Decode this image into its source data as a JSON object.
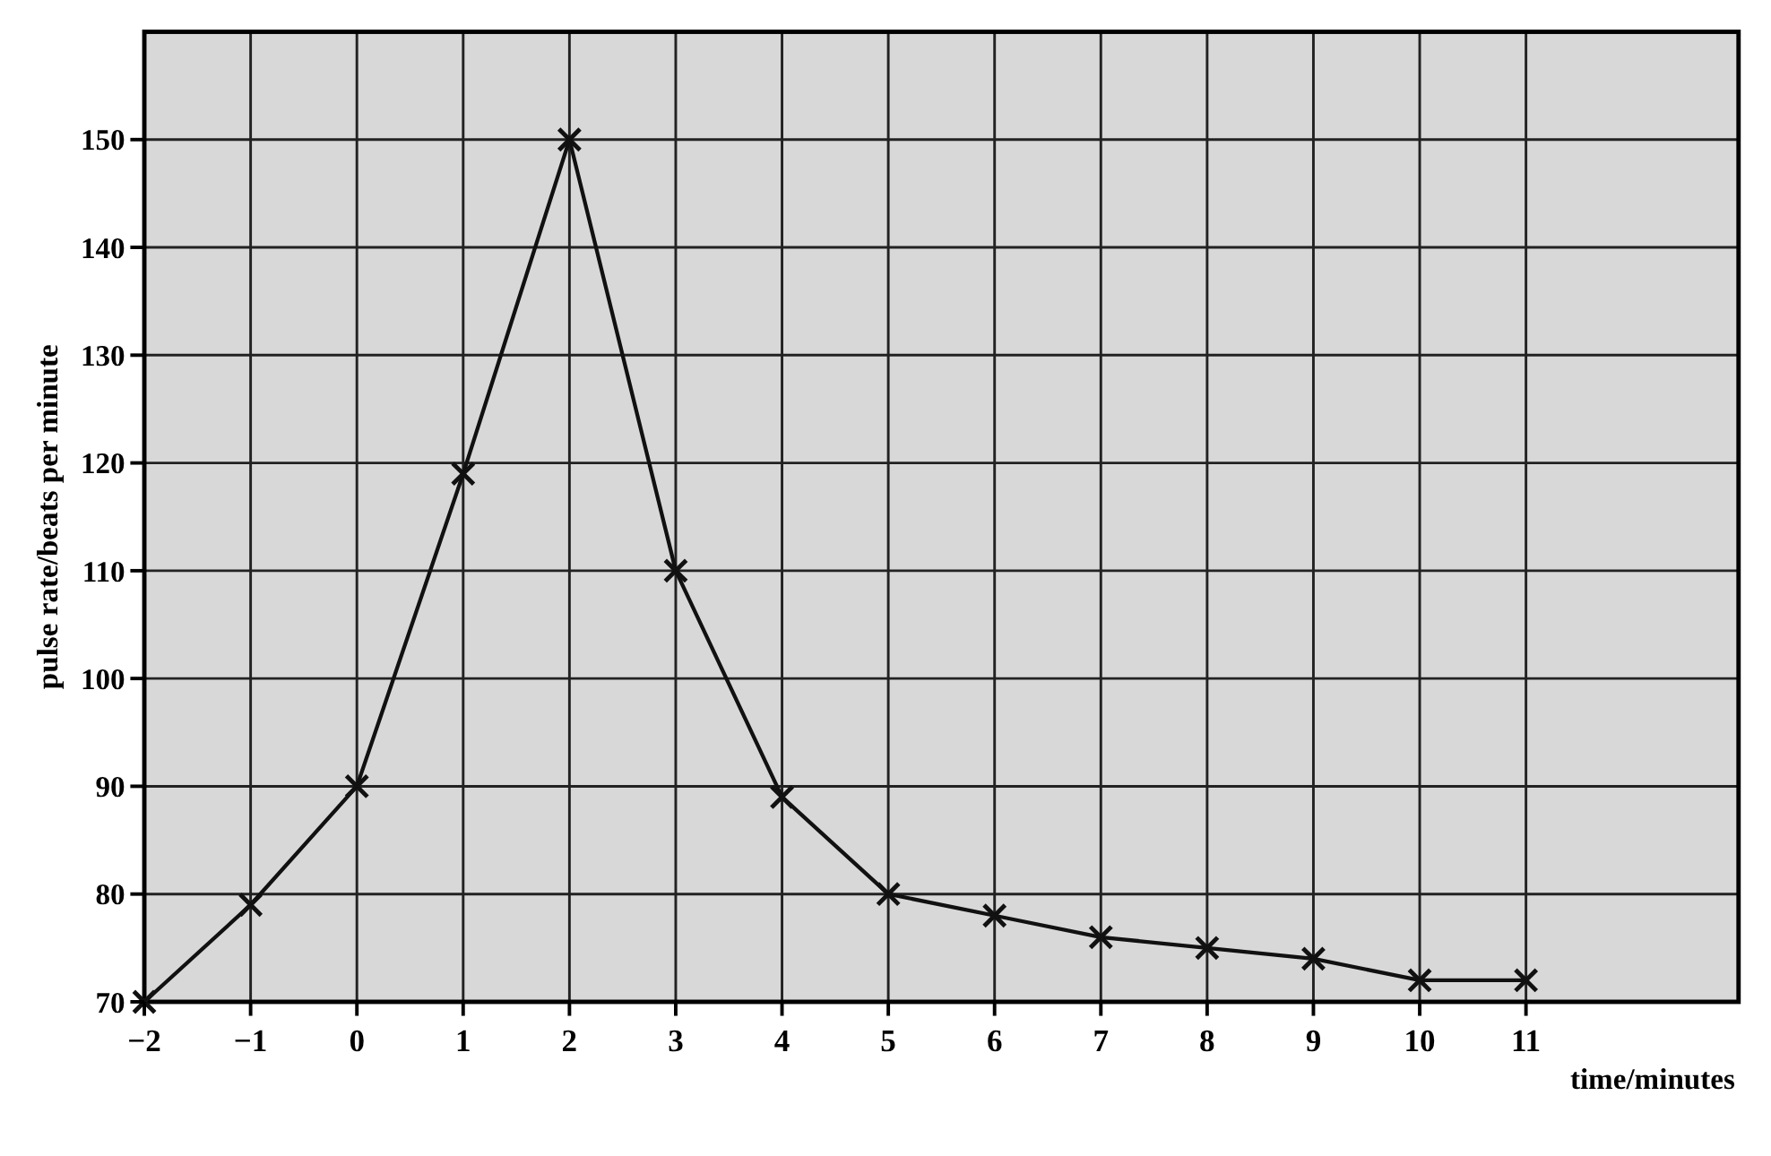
{
  "chart_data": {
    "type": "line",
    "xlabel": "time/minutes",
    "ylabel": "pulse rate/beats per minute",
    "x": [
      -2,
      -1,
      0,
      1,
      2,
      3,
      4,
      5,
      6,
      7,
      8,
      9,
      10,
      11
    ],
    "series": [
      {
        "color": "#111111",
        "values": [
          70,
          79,
          90,
          119,
          150,
          110,
          89,
          80,
          78,
          76,
          75,
          74,
          72,
          72
        ]
      }
    ],
    "xlim": [
      -2,
      13
    ],
    "xticks": [
      -2,
      -1,
      0,
      1,
      2,
      3,
      4,
      5,
      6,
      7,
      8,
      9,
      10,
      11
    ],
    "ylim": [
      70,
      160
    ],
    "yticks": [
      70,
      80,
      90,
      100,
      110,
      120,
      130,
      140,
      150
    ],
    "grid": true,
    "marker": "cross",
    "line_style": "solid"
  }
}
